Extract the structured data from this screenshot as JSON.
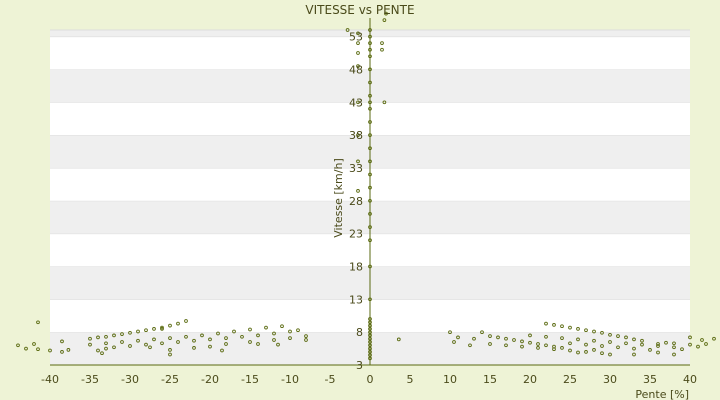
{
  "chart_data": {
    "type": "scatter",
    "title": "VITESSE vs PENTE",
    "xlabel": "Pente [%]",
    "ylabel": "Vitesse [km/h]",
    "xlim": [
      -40,
      40
    ],
    "ylim": [
      3,
      54
    ],
    "x_ticks": [
      "-40",
      "-35",
      "-30",
      "-25",
      "-20",
      "-15",
      "-10",
      "-5",
      "0",
      "5",
      "10",
      "15",
      "20",
      "25",
      "30",
      "35",
      "40"
    ],
    "y_ticks": [
      "3",
      "8",
      "13",
      "18",
      "23",
      "28",
      "33",
      "38",
      "43",
      "48",
      "53"
    ],
    "grid": true,
    "legend": "none",
    "colors": {
      "point": "#5a6a10",
      "axis": "#5a6a10",
      "band_light": "#ffffff",
      "band_dark": "#efefef",
      "background": "#eef3d6"
    },
    "series": [
      {
        "points": [
          [
            -44,
            6
          ],
          [
            -43,
            5.5
          ],
          [
            -42,
            6.2
          ],
          [
            -41.5,
            5.4
          ],
          [
            -41.5,
            9.5
          ],
          [
            -40,
            5.2
          ],
          [
            -38.5,
            6.6
          ],
          [
            -38.5,
            5
          ],
          [
            -37.7,
            5.3
          ],
          [
            -35,
            7
          ],
          [
            -34,
            7.2
          ],
          [
            -33,
            7.3
          ],
          [
            -32,
            7.5
          ],
          [
            -31,
            7.7
          ],
          [
            -30,
            7.9
          ],
          [
            -29,
            8.1
          ],
          [
            -28,
            8.3
          ],
          [
            -27,
            8.5
          ],
          [
            -26,
            8.7
          ],
          [
            -25,
            9
          ],
          [
            -24,
            9.3
          ],
          [
            -23,
            9.7
          ],
          [
            -35,
            6.1
          ],
          [
            -33,
            6.3
          ],
          [
            -31,
            6.5
          ],
          [
            -29,
            6.7
          ],
          [
            -27,
            6.9
          ],
          [
            -25,
            7.1
          ],
          [
            -23,
            7.3
          ],
          [
            -21,
            7.5
          ],
          [
            -19,
            7.8
          ],
          [
            -17,
            8.1
          ],
          [
            -15,
            8.4
          ],
          [
            -13,
            8.7
          ],
          [
            -11,
            8.9
          ],
          [
            -30,
            5.9
          ],
          [
            -28,
            6.1
          ],
          [
            -26,
            6.3
          ],
          [
            -24,
            6.5
          ],
          [
            -22,
            6.7
          ],
          [
            -20,
            6.9
          ],
          [
            -18,
            7.1
          ],
          [
            -16,
            7.3
          ],
          [
            -14,
            7.5
          ],
          [
            -12,
            7.8
          ],
          [
            -10,
            8.1
          ],
          [
            -9,
            8.3
          ],
          [
            -34,
            5.2
          ],
          [
            -33,
            5.5
          ],
          [
            -32,
            5.7
          ],
          [
            -25,
            5.3
          ],
          [
            -22,
            5.6
          ],
          [
            -20,
            5.8
          ],
          [
            -18,
            6.2
          ],
          [
            -15,
            6.5
          ],
          [
            -12,
            6.8
          ],
          [
            -10,
            7.1
          ],
          [
            -8,
            6.8
          ],
          [
            -26,
            8.5
          ],
          [
            -27.5,
            5.7
          ],
          [
            -33.5,
            4.8
          ],
          [
            -25,
            4.6
          ],
          [
            -18.5,
            5.2
          ],
          [
            -14,
            6.2
          ],
          [
            -11.5,
            6.1
          ],
          [
            -8,
            7.4
          ],
          [
            0,
            4
          ],
          [
            0,
            4.5
          ],
          [
            0,
            5
          ],
          [
            0,
            5.5
          ],
          [
            0,
            6
          ],
          [
            0,
            6.5
          ],
          [
            0,
            7
          ],
          [
            0,
            7.5
          ],
          [
            0,
            8
          ],
          [
            0,
            8.5
          ],
          [
            0,
            9
          ],
          [
            0,
            9.5
          ],
          [
            0,
            10
          ],
          [
            0,
            13
          ],
          [
            0,
            18
          ],
          [
            0,
            22
          ],
          [
            0,
            24
          ],
          [
            0,
            26
          ],
          [
            0,
            28
          ],
          [
            0,
            30
          ],
          [
            0,
            32
          ],
          [
            0,
            34
          ],
          [
            0,
            36
          ],
          [
            0,
            38
          ],
          [
            0,
            40
          ],
          [
            0,
            42
          ],
          [
            0,
            43
          ],
          [
            0,
            44
          ],
          [
            0,
            46
          ],
          [
            0,
            48
          ],
          [
            0,
            50
          ],
          [
            0,
            51
          ],
          [
            0,
            52
          ],
          [
            0,
            53
          ],
          [
            0,
            54
          ],
          [
            -1.5,
            29.5
          ],
          [
            -1.5,
            34
          ],
          [
            -1.5,
            38
          ],
          [
            -1.5,
            43
          ],
          [
            -1.5,
            48.5
          ],
          [
            -1.5,
            50.5
          ],
          [
            -1.5,
            52
          ],
          [
            -1.5,
            53.5
          ],
          [
            -2.8,
            54
          ],
          [
            1.5,
            51
          ],
          [
            1.5,
            52
          ],
          [
            1.8,
            43
          ],
          [
            1.8,
            55.5
          ],
          [
            2,
            56.5
          ],
          [
            3.6,
            6.9
          ],
          [
            10,
            8
          ],
          [
            10.5,
            6.5
          ],
          [
            11,
            7.2
          ],
          [
            12.5,
            6
          ],
          [
            13,
            7
          ],
          [
            14,
            8
          ],
          [
            15,
            7.4
          ],
          [
            16,
            7.2
          ],
          [
            17,
            7
          ],
          [
            18,
            6.8
          ],
          [
            19,
            6.6
          ],
          [
            20,
            6.4
          ],
          [
            21,
            6.2
          ],
          [
            22,
            6
          ],
          [
            23,
            5.8
          ],
          [
            24,
            5.6
          ],
          [
            15,
            6.2
          ],
          [
            17,
            6
          ],
          [
            19,
            5.8
          ],
          [
            21,
            5.6
          ],
          [
            23,
            5.4
          ],
          [
            25,
            5.2
          ],
          [
            27,
            5
          ],
          [
            29,
            4.8
          ],
          [
            22,
            9.3
          ],
          [
            23,
            9.1
          ],
          [
            24,
            8.9
          ],
          [
            25,
            8.7
          ],
          [
            26,
            8.5
          ],
          [
            27,
            8.3
          ],
          [
            28,
            8.1
          ],
          [
            29,
            7.9
          ],
          [
            30,
            7.6
          ],
          [
            31,
            7.4
          ],
          [
            32,
            7.2
          ],
          [
            33,
            6.9
          ],
          [
            34,
            6.7
          ],
          [
            20,
            7.5
          ],
          [
            22,
            7.3
          ],
          [
            24,
            7.1
          ],
          [
            26,
            6.9
          ],
          [
            28,
            6.7
          ],
          [
            30,
            6.5
          ],
          [
            32,
            6.3
          ],
          [
            34,
            6.1
          ],
          [
            36,
            5.9
          ],
          [
            38,
            5.7
          ],
          [
            25,
            6.3
          ],
          [
            27,
            6.1
          ],
          [
            29,
            5.9
          ],
          [
            31,
            5.7
          ],
          [
            33,
            5.5
          ],
          [
            35,
            5.3
          ],
          [
            36,
            6.2
          ],
          [
            37,
            6.4
          ],
          [
            38,
            6.3
          ],
          [
            39,
            5.4
          ],
          [
            40,
            6.1
          ],
          [
            40,
            7.2
          ],
          [
            41,
            5.8
          ],
          [
            41.5,
            6.8
          ],
          [
            42,
            6.2
          ],
          [
            43,
            7
          ],
          [
            44,
            6.5
          ],
          [
            26,
            4.9
          ],
          [
            28,
            5.3
          ],
          [
            30,
            4.6
          ],
          [
            33,
            4.6
          ],
          [
            36,
            4.9
          ],
          [
            38,
            4.6
          ]
        ]
      }
    ]
  }
}
